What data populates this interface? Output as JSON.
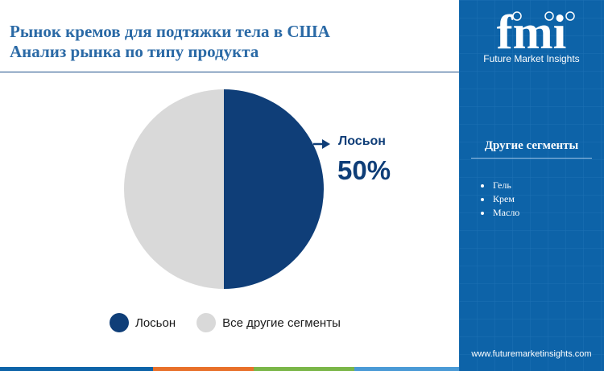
{
  "header": {
    "title_line1": "Рынок кремов для подтяжки тела в США",
    "title_line2": "Анализ рынка по типу продукта"
  },
  "chart_data": {
    "type": "pie",
    "slices": [
      {
        "label": "Лосьон",
        "value": 50,
        "color": "#0f3e78"
      },
      {
        "label": "Все другие сегменты",
        "value": 50,
        "color": "#d9d9d9"
      }
    ],
    "legend_position": "bottom",
    "callout": {
      "label": "Лосьон",
      "value_text": "50%"
    }
  },
  "sidebar": {
    "logo_text": "fmi",
    "logo_subtitle": "Future Market Insights",
    "segments_title": "Другие сегменты",
    "segments": [
      "Гель",
      "Крем",
      "Масло"
    ],
    "url": "www.futuremarketinsights.com"
  },
  "colors": {
    "primary": "#0f3e78",
    "sidebar_bg": "#0d63a8",
    "title": "#2b6aa6",
    "bottom_bar": [
      "#0d63a8",
      "#e8702a",
      "#7ab648",
      "#4a9ad6"
    ]
  }
}
